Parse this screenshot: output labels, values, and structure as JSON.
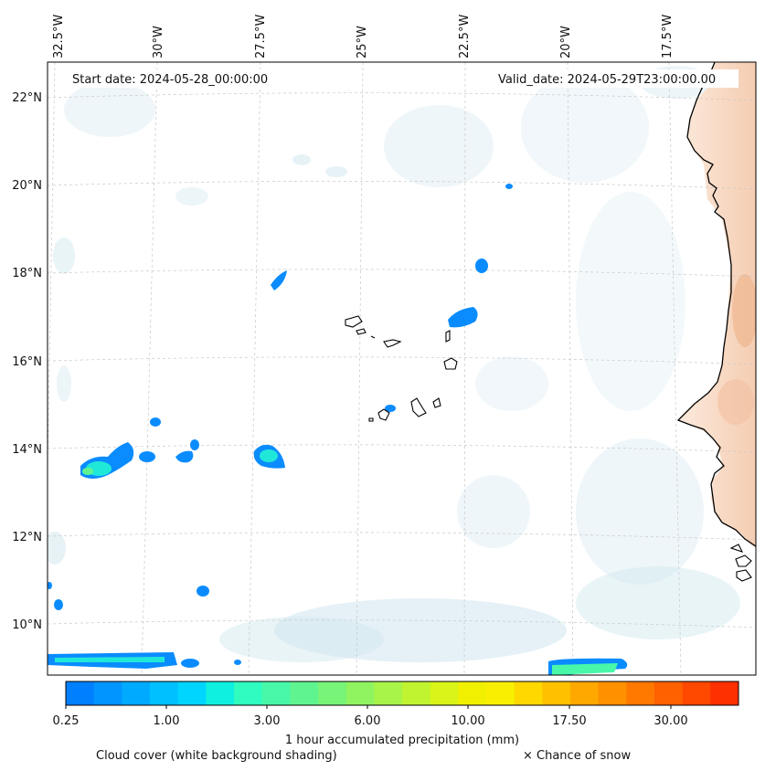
{
  "header": {
    "start_date": "Start date: 2024-05-28_00:00:00",
    "valid_date": "Valid_date: 2024-05-29T23:00:00.00"
  },
  "longitude_labels": [
    "32.5°W",
    "30°W",
    "27.5°W",
    "25°W",
    "22.5°W",
    "20°W",
    "17.5°W"
  ],
  "latitude_labels": [
    "22°N",
    "20°N",
    "18°N",
    "16°N",
    "14°N",
    "12°N",
    "10°N"
  ],
  "colorbar": {
    "colors": [
      "#0080ff",
      "#0095ff",
      "#00aaff",
      "#00c0ff",
      "#00d5ff",
      "#10f0e0",
      "#30fcc0",
      "#48f8a8",
      "#60f490",
      "#78f478",
      "#90f460",
      "#a8f448",
      "#c0f430",
      "#d8f418",
      "#f0f000",
      "#f8f000",
      "#ffd800",
      "#ffc000",
      "#ffa800",
      "#ff9000",
      "#ff7800",
      "#ff6000",
      "#ff4800",
      "#ff3000"
    ],
    "tick_labels": [
      "0.25",
      "1.00",
      "3.00",
      "6.00",
      "10.00",
      "17.50",
      "30.00"
    ],
    "label": "1 hour accumulated precipitation (mm)"
  },
  "footer": {
    "cloud_note": "Cloud cover (white background shading)",
    "snow_note": "× Chance of snow"
  },
  "colors": {
    "precipitation_light": "#0080ff",
    "precipitation_mid": "#30fcc0",
    "land_shading": "#f6d2b6",
    "cloud_shading": "#d6eaf0",
    "coastline": "#000000"
  }
}
